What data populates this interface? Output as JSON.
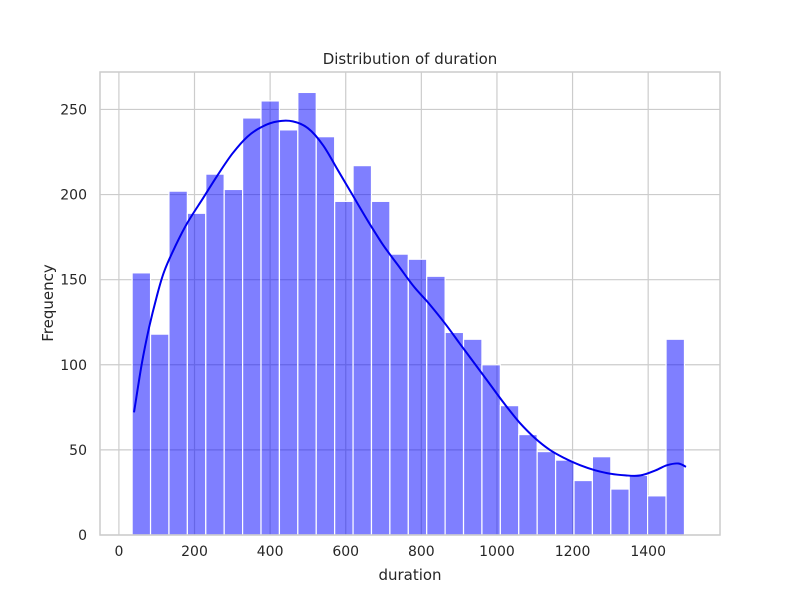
{
  "chart_data": {
    "type": "bar",
    "title": "Distribution of duration",
    "xlabel": "duration",
    "ylabel": "Frequency",
    "xlim": [
      -50,
      1590
    ],
    "ylim": [
      0,
      272
    ],
    "xticks": [
      0,
      200,
      400,
      600,
      800,
      1000,
      1200,
      1400
    ],
    "yticks": [
      0,
      50,
      100,
      150,
      200,
      250
    ],
    "grid": true,
    "bin_start": 35,
    "bin_width": 48.7,
    "values": [
      154,
      118,
      202,
      189,
      212,
      203,
      245,
      255,
      238,
      260,
      234,
      196,
      217,
      196,
      165,
      162,
      152,
      119,
      115,
      100,
      76,
      59,
      49,
      44,
      32,
      46,
      27,
      35,
      23,
      115
    ],
    "kde": {
      "x": [
        40,
        60,
        80,
        100,
        120,
        150,
        180,
        220,
        260,
        300,
        340,
        380,
        420,
        460,
        500,
        540,
        580,
        620,
        660,
        700,
        740,
        780,
        820,
        860,
        900,
        940,
        980,
        1020,
        1060,
        1100,
        1140,
        1180,
        1220,
        1260,
        1300,
        1340,
        1380,
        1420,
        1450,
        1480,
        1500
      ],
      "y": [
        72,
        100,
        122,
        140,
        155,
        170,
        183,
        197,
        211,
        224,
        234,
        240,
        243,
        243,
        239,
        229,
        214,
        199,
        184,
        170,
        158,
        146,
        136,
        125,
        113,
        101,
        89,
        77,
        66,
        57,
        50,
        45,
        41,
        38,
        36,
        35,
        35,
        38,
        41,
        42,
        40
      ]
    },
    "colors": {
      "bar": "#0000ff",
      "kde": "#0000ee",
      "grid": "#cccccc"
    }
  }
}
